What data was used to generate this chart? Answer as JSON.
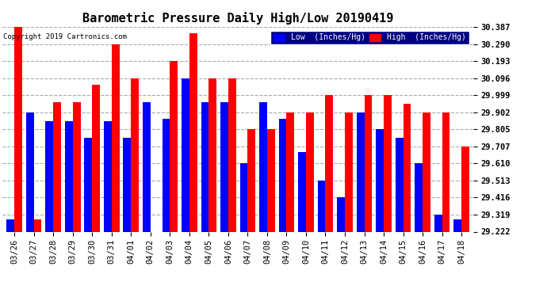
{
  "title": "Barometric Pressure Daily High/Low 20190419",
  "copyright": "Copyright 2019 Cartronics.com",
  "categories": [
    "03/26",
    "03/27",
    "03/28",
    "03/29",
    "03/30",
    "03/31",
    "04/01",
    "04/02",
    "04/03",
    "04/04",
    "04/05",
    "04/06",
    "04/07",
    "04/08",
    "04/09",
    "04/10",
    "04/11",
    "04/12",
    "04/13",
    "04/14",
    "04/15",
    "04/16",
    "04/17",
    "04/18"
  ],
  "low_values": [
    29.29,
    29.902,
    29.853,
    29.853,
    29.755,
    29.853,
    29.755,
    29.96,
    29.863,
    30.096,
    29.96,
    29.96,
    29.61,
    29.96,
    29.863,
    29.677,
    29.513,
    29.416,
    29.902,
    29.805,
    29.755,
    29.61,
    29.319,
    29.29
  ],
  "high_values": [
    30.387,
    29.29,
    29.96,
    29.96,
    30.06,
    30.29,
    30.096,
    29.193,
    30.193,
    30.35,
    30.096,
    30.096,
    29.805,
    29.805,
    29.902,
    29.902,
    29.999,
    29.902,
    30.0,
    29.999,
    29.95,
    29.902,
    29.902,
    29.707
  ],
  "ylim_min": 29.222,
  "ylim_max": 30.387,
  "yticks": [
    29.222,
    29.319,
    29.416,
    29.513,
    29.61,
    29.707,
    29.805,
    29.902,
    29.999,
    30.096,
    30.193,
    30.29,
    30.387
  ],
  "low_color": "#0000FF",
  "high_color": "#FF0000",
  "bg_color": "#FFFFFF",
  "grid_color": "#AAAAAA",
  "bar_width": 0.4,
  "title_fontsize": 11,
  "tick_fontsize": 7.5,
  "legend_low_label": "Low  (Inches/Hg)",
  "legend_high_label": "High  (Inches/Hg)"
}
